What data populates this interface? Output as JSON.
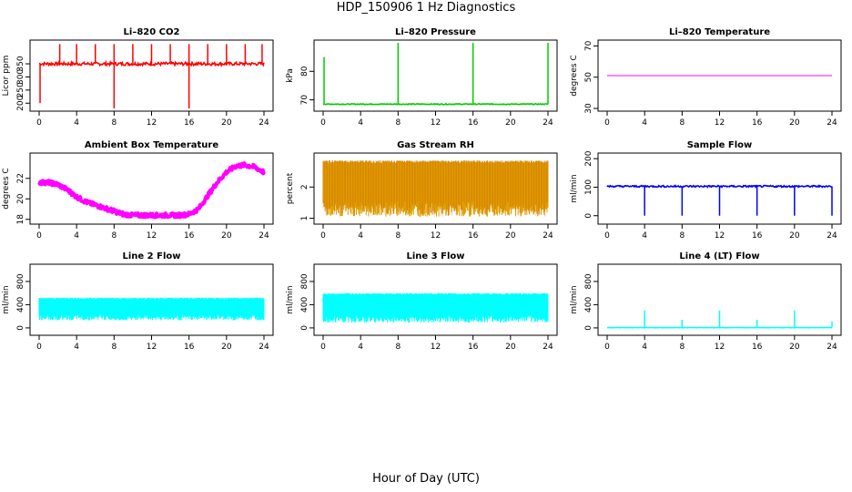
{
  "page": {
    "title": "HDP_150906  1 Hz Diagnostics",
    "xlabel": "Hour of Day (UTC)"
  },
  "chart_data": [
    {
      "type": "line",
      "title": "Li–820 CO2",
      "ylabel": "Licor ppm",
      "color": "#ff0000",
      "xlim": [
        0,
        24
      ],
      "ylim": [
        180,
        430
      ],
      "xticks": [
        0,
        4,
        8,
        12,
        16,
        20,
        24
      ],
      "yticks": [
        200,
        250,
        300,
        350
      ],
      "baseline": 350,
      "noise": 6,
      "spikes": [
        [
          0.1,
          200
        ],
        [
          2.2,
          425
        ],
        [
          4.0,
          425
        ],
        [
          6.0,
          425
        ],
        [
          8.0,
          180
        ],
        [
          8.0,
          425
        ],
        [
          10.0,
          425
        ],
        [
          12.0,
          425
        ],
        [
          14.0,
          425
        ],
        [
          16.0,
          180
        ],
        [
          16.0,
          425
        ],
        [
          18.0,
          425
        ],
        [
          20.0,
          425
        ],
        [
          22.0,
          425
        ],
        [
          23.8,
          425
        ]
      ]
    },
    {
      "type": "line",
      "title": "Li–820 Pressure",
      "ylabel": "kPa",
      "color": "#00cc00",
      "xlim": [
        0,
        24
      ],
      "ylim": [
        67,
        90
      ],
      "xticks": [
        0,
        4,
        8,
        12,
        16,
        20,
        24
      ],
      "yticks": [
        70,
        80
      ],
      "baseline": 68.5,
      "noise": 0.15,
      "spikes": [
        [
          0.1,
          85
        ],
        [
          8.0,
          90
        ],
        [
          16.0,
          90
        ],
        [
          24.0,
          90
        ]
      ]
    },
    {
      "type": "line",
      "title": "Li–820 Temperature",
      "ylabel": "degrees C",
      "color": "#ff00ff",
      "xlim": [
        0,
        24
      ],
      "ylim": [
        30,
        72
      ],
      "xticks": [
        0,
        4,
        8,
        12,
        16,
        20,
        24
      ],
      "yticks": [
        30,
        50,
        70
      ],
      "baseline": 51,
      "noise": 0,
      "spikes": []
    },
    {
      "type": "line",
      "title": "Ambient Box Temperature",
      "ylabel": "degrees C",
      "color": "#ff00ff",
      "xlim": [
        0,
        24
      ],
      "ylim": [
        17.8,
        24.2
      ],
      "xticks": [
        0,
        4,
        8,
        12,
        16,
        20,
        24
      ],
      "yticks": [
        18,
        20,
        22
      ],
      "x": [
        0,
        1,
        2,
        3,
        4,
        5,
        6,
        7,
        8,
        9,
        10,
        11,
        12,
        13,
        14,
        15,
        16,
        17,
        18,
        19,
        20,
        21,
        22,
        23,
        24
      ],
      "y": [
        21.6,
        21.6,
        21.4,
        20.9,
        20.2,
        19.7,
        19.4,
        19.1,
        18.8,
        18.5,
        18.4,
        18.4,
        18.4,
        18.4,
        18.4,
        18.4,
        18.5,
        19.0,
        20.3,
        21.6,
        22.6,
        23.2,
        23.3,
        23.1,
        22.6
      ],
      "noise": 0.2
    },
    {
      "type": "line",
      "title": "Gas Stream RH",
      "ylabel": "percent",
      "color": "#e0a000",
      "xlim": [
        0,
        24
      ],
      "ylim": [
        0.9,
        3.0
      ],
      "xticks": [
        0,
        4,
        8,
        12,
        16,
        20,
        24
      ],
      "yticks": [
        1.0,
        2.0
      ],
      "band": [
        1.05,
        2.85
      ]
    },
    {
      "type": "line",
      "title": "Sample Flow",
      "ylabel": "ml/min",
      "color": "#0000ff",
      "xlim": [
        0,
        24
      ],
      "ylim": [
        -20,
        210
      ],
      "xticks": [
        0,
        4,
        8,
        12,
        16,
        20,
        24
      ],
      "yticks": [
        0,
        100,
        200
      ],
      "baseline": 103,
      "noise": 3,
      "spikes": [
        [
          4.0,
          0
        ],
        [
          8.0,
          0
        ],
        [
          12.0,
          0
        ],
        [
          16.0,
          0
        ],
        [
          20.0,
          0
        ],
        [
          24.0,
          0
        ]
      ]
    },
    {
      "type": "line",
      "title": "Line 2 Flow",
      "ylabel": "ml/min",
      "color": "#00ffff",
      "xlim": [
        0,
        24
      ],
      "ylim": [
        -80,
        1050
      ],
      "xticks": [
        0,
        4,
        8,
        12,
        16,
        20,
        24
      ],
      "yticks": [
        0,
        400,
        800
      ],
      "band": [
        130,
        520
      ]
    },
    {
      "type": "line",
      "title": "Line 3 Flow",
      "ylabel": "ml/min",
      "color": "#00ffff",
      "xlim": [
        0,
        24
      ],
      "ylim": [
        -80,
        1050
      ],
      "xticks": [
        0,
        4,
        8,
        12,
        16,
        20,
        24
      ],
      "yticks": [
        0,
        400,
        800
      ],
      "band": [
        90,
        600
      ]
    },
    {
      "type": "line",
      "title": "Line 4 (LT) Flow",
      "ylabel": "ml/min",
      "color": "#00ffff",
      "xlim": [
        0,
        24
      ],
      "ylim": [
        -80,
        1050
      ],
      "xticks": [
        0,
        4,
        8,
        12,
        16,
        20,
        24
      ],
      "yticks": [
        0,
        400,
        800
      ],
      "baseline": 5,
      "noise": 2,
      "spikes": [
        [
          4.0,
          300
        ],
        [
          8.0,
          140
        ],
        [
          12.0,
          300
        ],
        [
          16.0,
          140
        ],
        [
          20.0,
          300
        ],
        [
          24.0,
          110
        ]
      ]
    }
  ]
}
